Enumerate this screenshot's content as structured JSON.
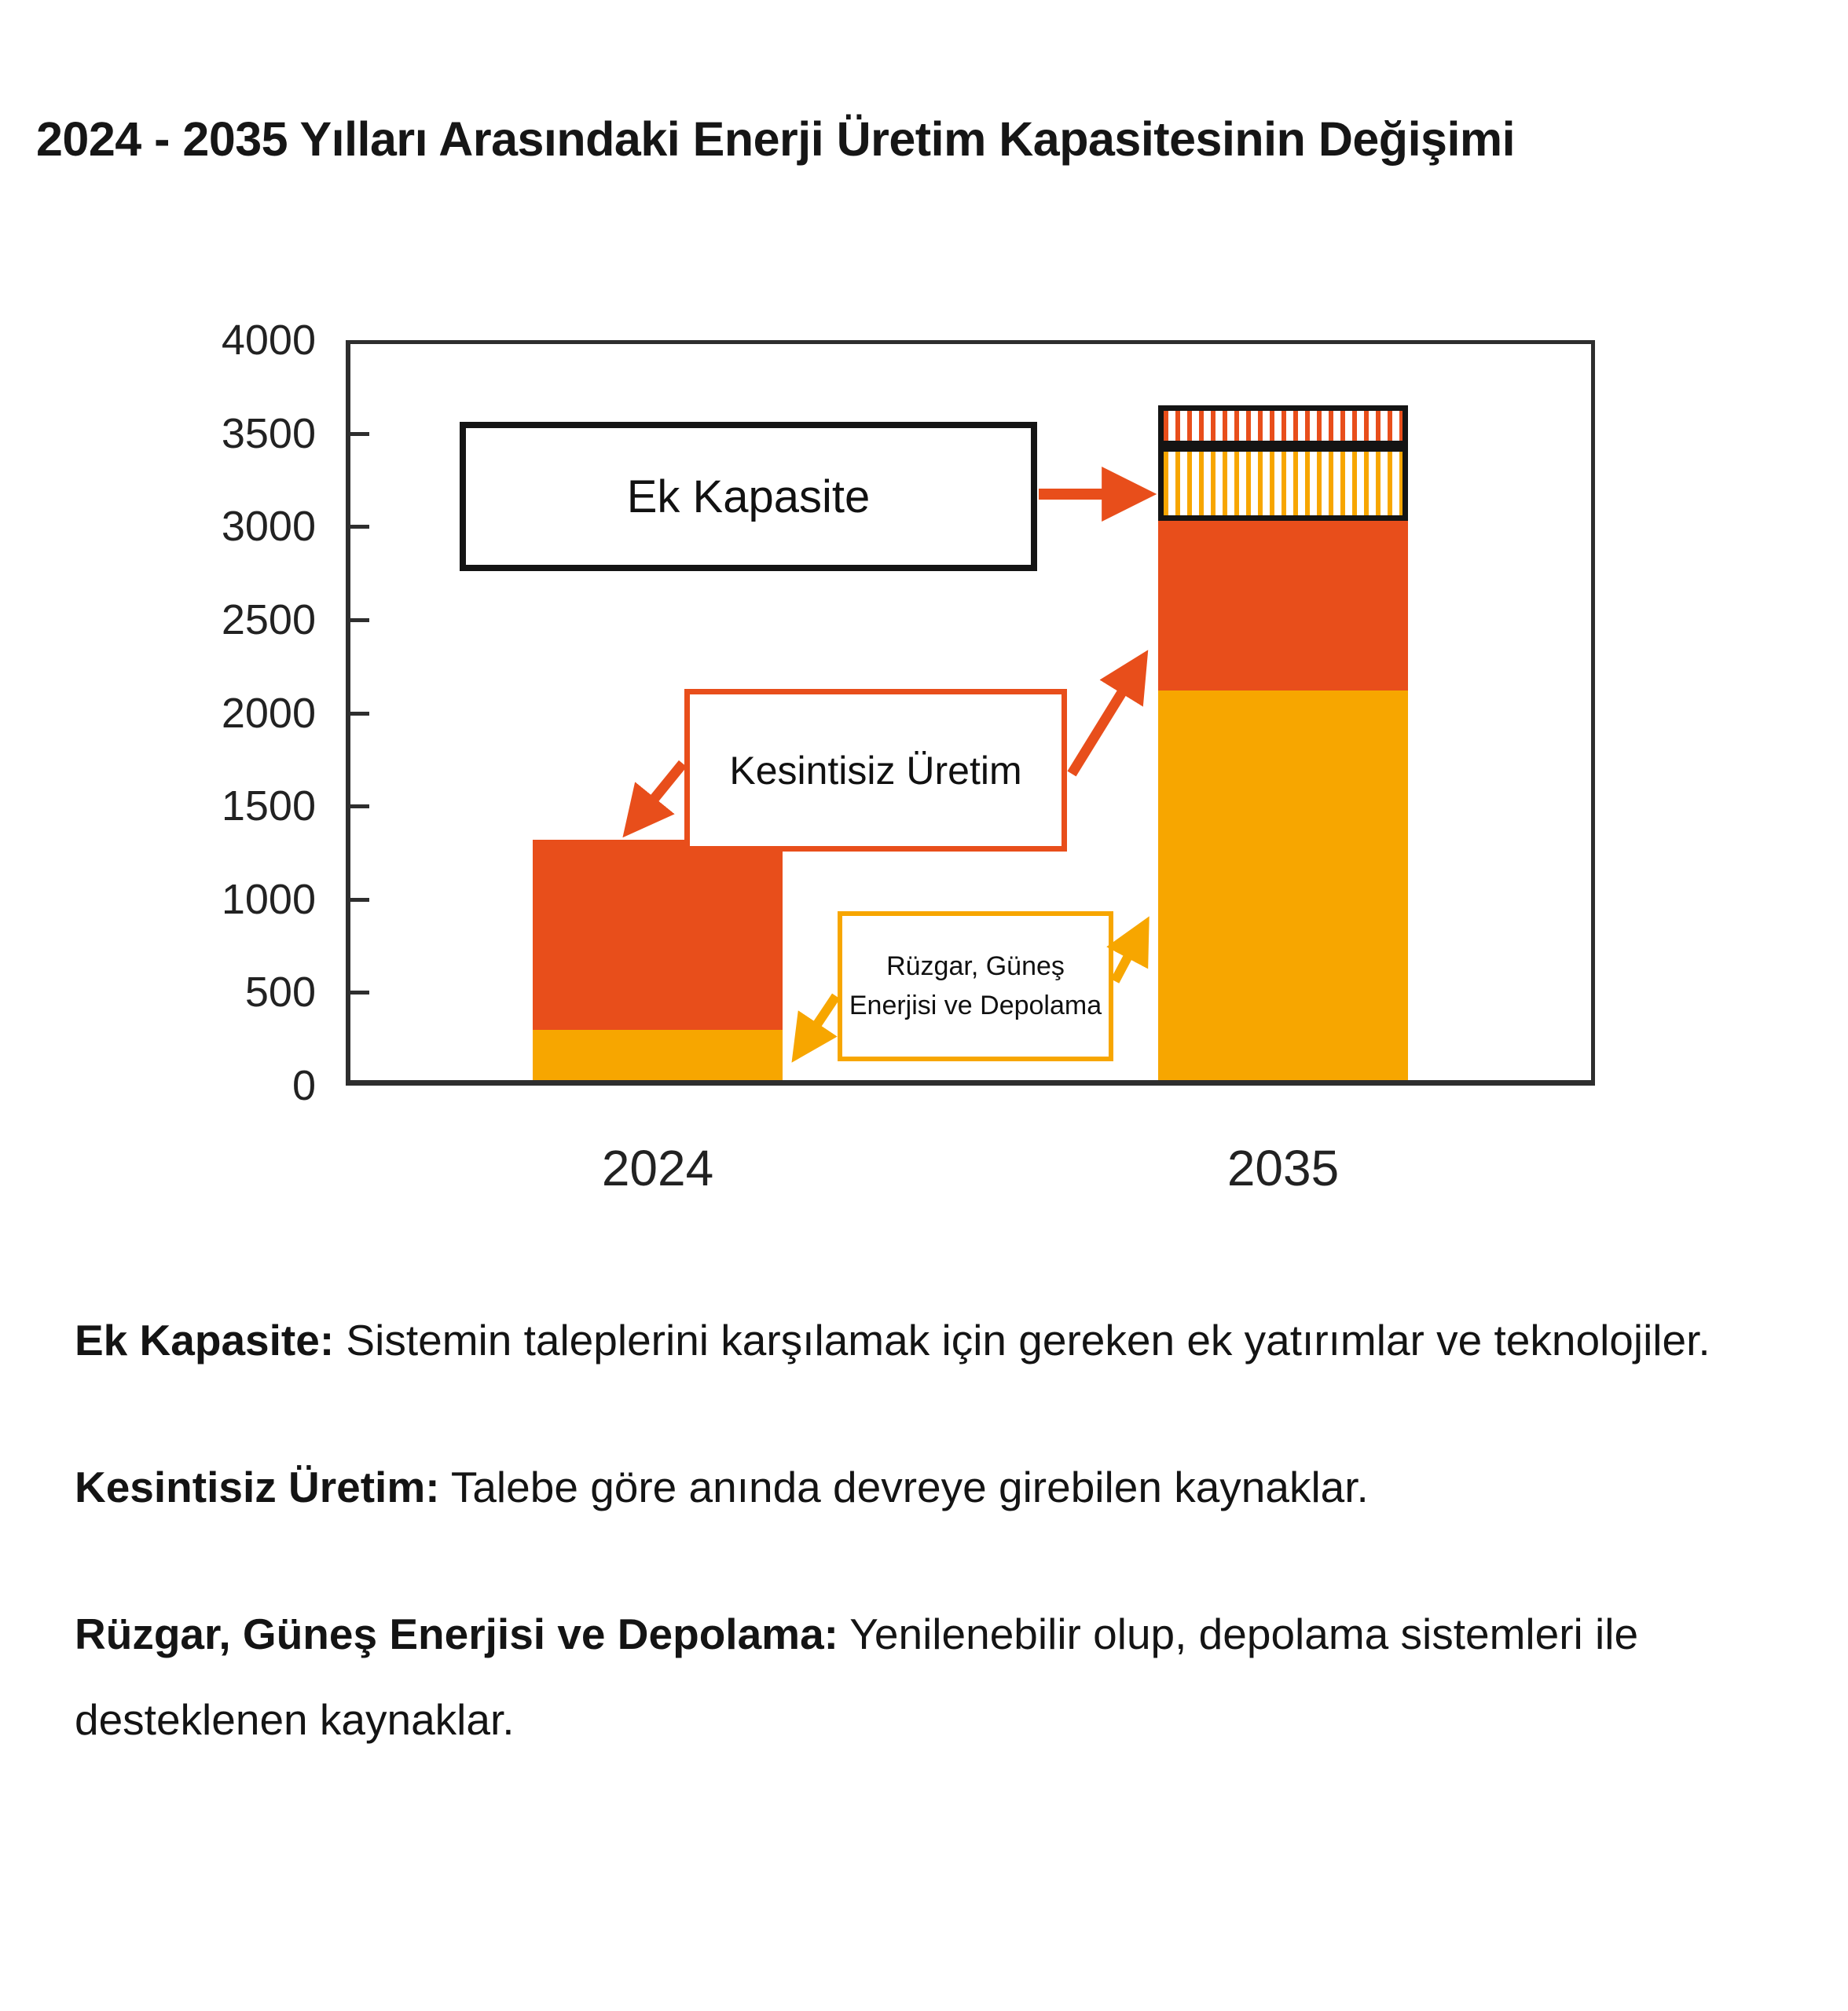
{
  "title": "2024 - 2035 Yılları Arasındaki Enerji Üretim Kapasitesinin Değişimi",
  "colors": {
    "orange": "#E84E1B",
    "amber": "#F7A600",
    "ink": "#141414",
    "axis": "#2e2e2e"
  },
  "chart_data": {
    "type": "bar",
    "stacked": true,
    "title": "2024 - 2035 Yılları Arasındaki Enerji Üretim Kapasitesinin Değişimi",
    "categories": [
      "2024",
      "2035"
    ],
    "xlabel": "",
    "ylabel": "",
    "ylim": [
      0,
      4000
    ],
    "yticks": [
      0,
      500,
      1000,
      1500,
      2000,
      2500,
      3000,
      3500,
      4000
    ],
    "grid": false,
    "legend_position": "none",
    "series": [
      {
        "name": "Rüzgar, Güneş Enerjisi ve Depolama",
        "values": [
          270,
          2090
        ],
        "color": "#F7A600",
        "pattern": "solid"
      },
      {
        "name": "Kesintisiz Üretim",
        "values": [
          1020,
          910
        ],
        "color": "#E84E1B",
        "pattern": "solid"
      },
      {
        "name": "Ek Kapasite - Rüzgar, Güneş Enerjisi ve Depolama",
        "values": [
          0,
          400
        ],
        "color": "#F7A600",
        "pattern": "hatch"
      },
      {
        "name": "Ek Kapasite - Kesintisiz Üretim",
        "values": [
          0,
          220
        ],
        "color": "#E84E1B",
        "pattern": "hatch"
      }
    ],
    "annotations": [
      {
        "label": "Ek Kapasite",
        "points_to": "2035 hatched top sections"
      },
      {
        "label": "Kesintisiz Üretim",
        "points_to": "orange sections of both bars"
      },
      {
        "label": "Rüzgar, Güneş Enerjisi ve Depolama",
        "points_to": "amber sections of both bars"
      }
    ]
  },
  "callouts": {
    "ek_kapasite": {
      "label": "Ek Kapasite"
    },
    "kesintisiz": {
      "label": "Kesintisiz Üretim"
    },
    "ruzgar": {
      "line1": "Rüzgar, Güneş",
      "line2": "Enerjisi ve Depolama"
    }
  },
  "legend": {
    "items": [
      {
        "term": "Ek Kapasite:",
        "desc": " Sistemin taleplerini karşılamak için gereken ek yatırımlar ve teknolojiler."
      },
      {
        "term": "Kesintisiz Üretim:",
        "desc": " Talebe göre anında devreye girebilen kaynaklar."
      },
      {
        "term": "Rüzgar, Güneş Enerjisi ve Depolama:",
        "desc": " Yenilenebilir olup, depolama sistemleri ile desteklenen kaynaklar."
      }
    ]
  }
}
